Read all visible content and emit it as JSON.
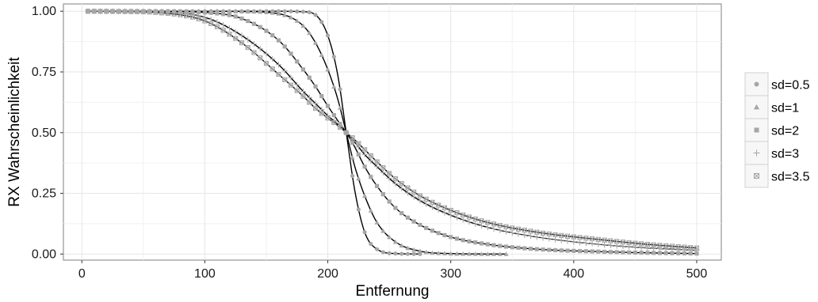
{
  "chart_data": {
    "type": "scatter",
    "title": "",
    "xlabel": "Entfernung",
    "ylabel": "RX Wahrscheinlichkeit",
    "xlim": [
      -15,
      520
    ],
    "ylim": [
      -0.025,
      1.03
    ],
    "x_ticks": [
      "0",
      "100",
      "200",
      "300",
      "400",
      "500"
    ],
    "y_ticks": [
      "0.00",
      "0.25",
      "0.50",
      "0.75",
      "1.00"
    ],
    "grid": true,
    "legend_position": "right",
    "background_color": "#ffffff",
    "grid_color": "#e6e6e6",
    "line_color": "#000000",
    "marker_color": "#a6a6a6",
    "x": [
      5,
      30,
      60,
      100,
      130,
      160,
      180,
      190,
      200,
      208,
      215,
      222,
      230,
      240,
      255,
      275,
      300,
      330,
      370,
      420,
      460,
      500
    ],
    "series": [
      {
        "name": "sd=0.5",
        "marker": "circle",
        "x_end": 275,
        "values": [
          1.0,
          1.0,
          1.0,
          1.0,
          1.0,
          1.0,
          0.998,
          0.985,
          0.9,
          0.74,
          0.5,
          0.26,
          0.09,
          0.02,
          0.002,
          0.0,
          null,
          null,
          null,
          null,
          null,
          null
        ]
      },
      {
        "name": "sd=1",
        "marker": "triangle",
        "x_end": 345,
        "values": [
          1.0,
          1.0,
          1.0,
          1.0,
          0.999,
          0.99,
          0.94,
          0.87,
          0.76,
          0.64,
          0.5,
          0.36,
          0.24,
          0.13,
          0.05,
          0.012,
          0.002,
          0.0,
          null,
          null,
          null,
          null
        ]
      },
      {
        "name": "sd=2",
        "marker": "square",
        "x_end": 500,
        "values": [
          1.0,
          1.0,
          1.0,
          0.995,
          0.97,
          0.88,
          0.76,
          0.69,
          0.61,
          0.55,
          0.5,
          0.44,
          0.36,
          0.28,
          0.19,
          0.12,
          0.07,
          0.04,
          0.02,
          0.01,
          0.005,
          0.002
        ]
      },
      {
        "name": "sd=3",
        "marker": "plus",
        "x_end": 500,
        "values": [
          1.0,
          1.0,
          0.998,
          0.975,
          0.9,
          0.78,
          0.67,
          0.62,
          0.57,
          0.535,
          0.5,
          0.46,
          0.41,
          0.36,
          0.29,
          0.22,
          0.16,
          0.11,
          0.07,
          0.04,
          0.025,
          0.015
        ]
      },
      {
        "name": "sd=3.5",
        "marker": "boxx",
        "x_end": 500,
        "values": [
          1.0,
          0.999,
          0.995,
          0.96,
          0.87,
          0.74,
          0.65,
          0.6,
          0.56,
          0.53,
          0.5,
          0.47,
          0.43,
          0.38,
          0.31,
          0.24,
          0.18,
          0.13,
          0.09,
          0.06,
          0.04,
          0.025
        ]
      }
    ]
  }
}
